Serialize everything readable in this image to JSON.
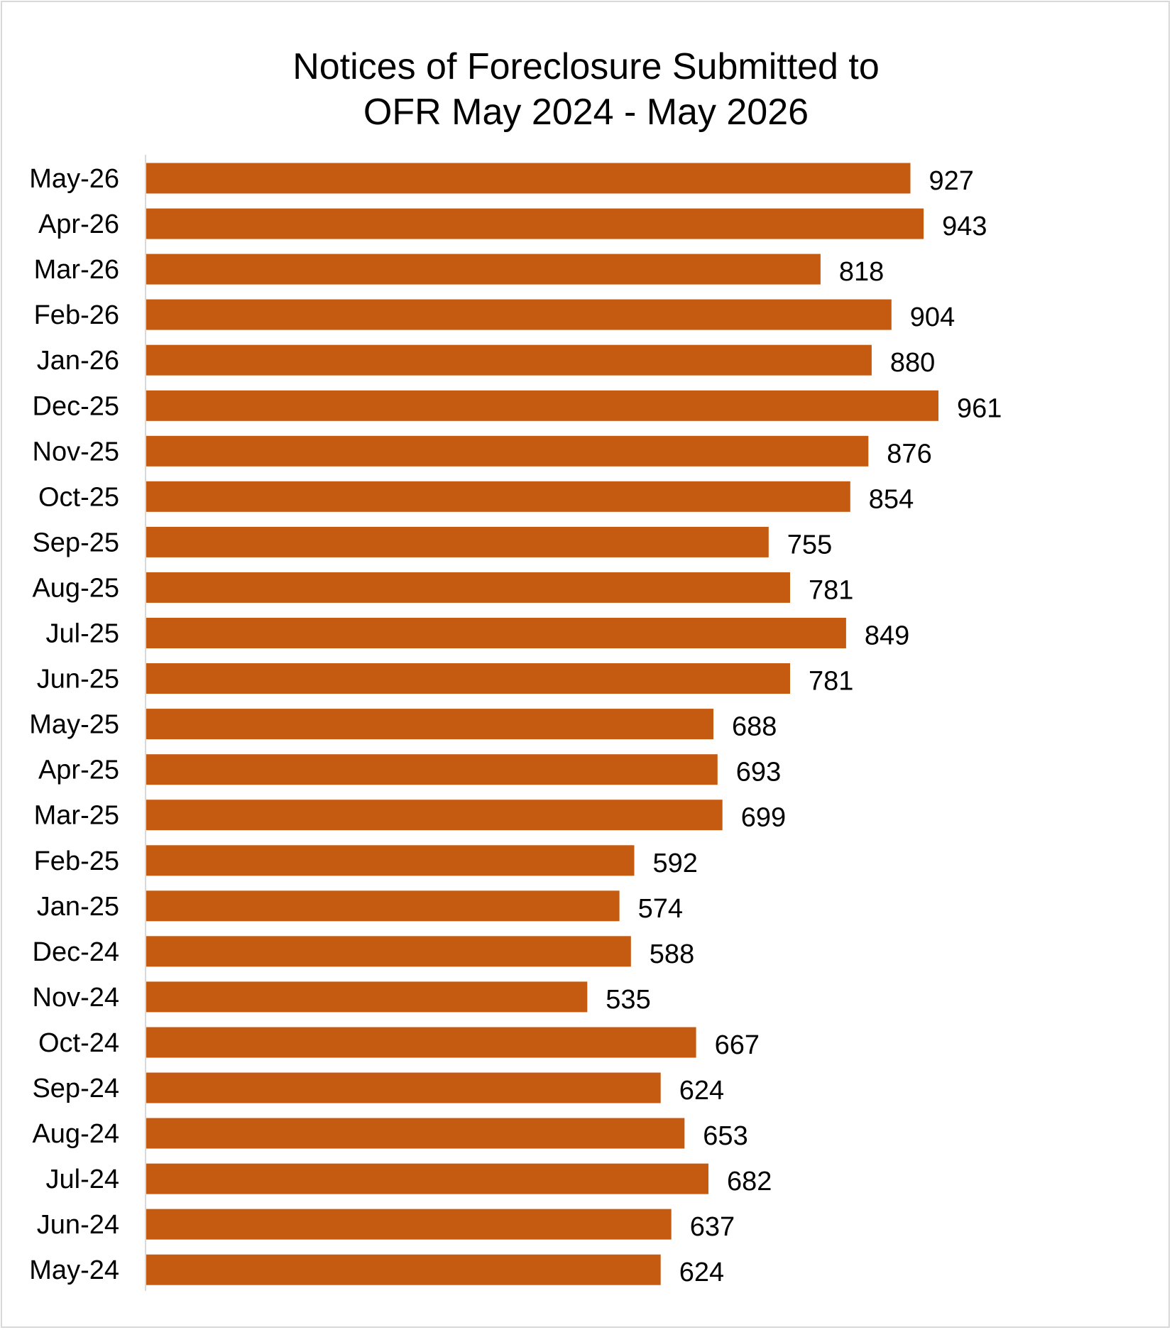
{
  "chart_data": {
    "type": "bar",
    "orientation": "horizontal",
    "title_lines": [
      "Notices of Foreclosure Submitted to",
      "OFR May 2024 - May 2026"
    ],
    "title": "Notices of Foreclosure Submitted to OFR May 2024 - May 2026",
    "xlabel": "",
    "ylabel": "",
    "categories": [
      "May-26",
      "Apr-26",
      "Mar-26",
      "Feb-26",
      "Jan-26",
      "Dec-25",
      "Nov-25",
      "Oct-25",
      "Sep-25",
      "Aug-25",
      "Jul-25",
      "Jun-25",
      "May-25",
      "Apr-25",
      "Mar-25",
      "Feb-25",
      "Jan-25",
      "Dec-24",
      "Nov-24",
      "Oct-24",
      "Sep-24",
      "Aug-24",
      "Jul-24",
      "Jun-24",
      "May-24"
    ],
    "values": [
      927,
      943,
      818,
      904,
      880,
      961,
      876,
      854,
      755,
      781,
      849,
      781,
      688,
      693,
      699,
      592,
      574,
      588,
      535,
      667,
      624,
      653,
      682,
      637,
      624
    ],
    "xlim": [
      0,
      1000
    ],
    "grid": false,
    "legend": "none",
    "data_labels": true,
    "bar_color": "#c55a11",
    "axis_color": "#d9d9d9"
  }
}
